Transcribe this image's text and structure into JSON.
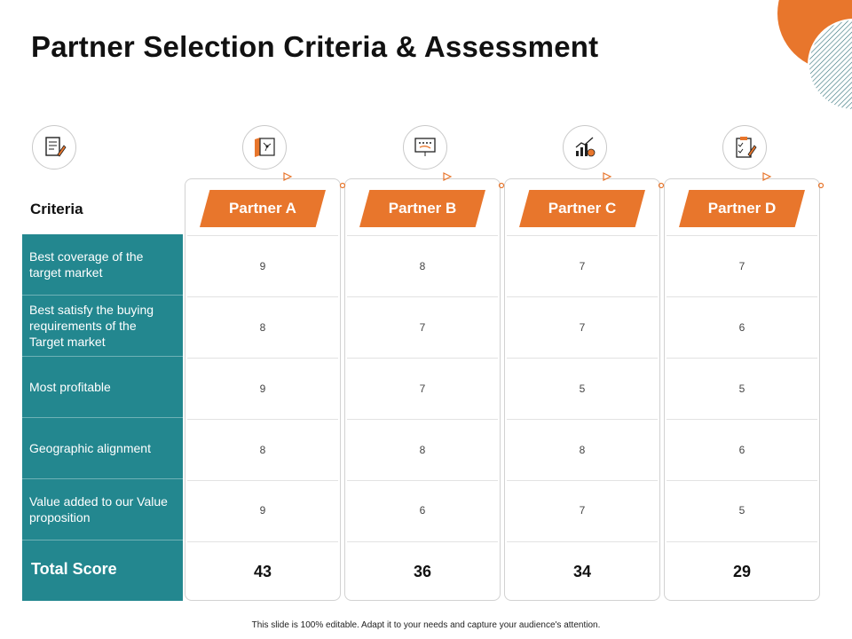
{
  "title": "Partner Selection Criteria & Assessment",
  "criteria_header": "Criteria",
  "criteria": [
    "Best coverage of the target market",
    "Best satisfy the buying requirements of the Target market",
    "Most profitable",
    "Geographic alignment",
    "Value added to our Value proposition"
  ],
  "total_label": "Total Score",
  "partners": [
    {
      "name": "Partner A",
      "scores": [
        "9",
        "8",
        "9",
        "8",
        "9"
      ],
      "total": "43"
    },
    {
      "name": "Partner B",
      "scores": [
        "8",
        "7",
        "7",
        "8",
        "6"
      ],
      "total": "36"
    },
    {
      "name": "Partner C",
      "scores": [
        "7",
        "7",
        "5",
        "8",
        "7"
      ],
      "total": "34"
    },
    {
      "name": "Partner D",
      "scores": [
        "7",
        "6",
        "5",
        "6",
        "5"
      ],
      "total": "29"
    }
  ],
  "icons": [
    "document-pen-icon",
    "map-icon",
    "strategy-board-icon",
    "growth-chart-icon",
    "checklist-icon"
  ],
  "colors": {
    "accent": "#e8762c",
    "teal": "#23878f"
  },
  "footer": "This slide is 100% editable. Adapt it to your needs and capture your audience's attention."
}
